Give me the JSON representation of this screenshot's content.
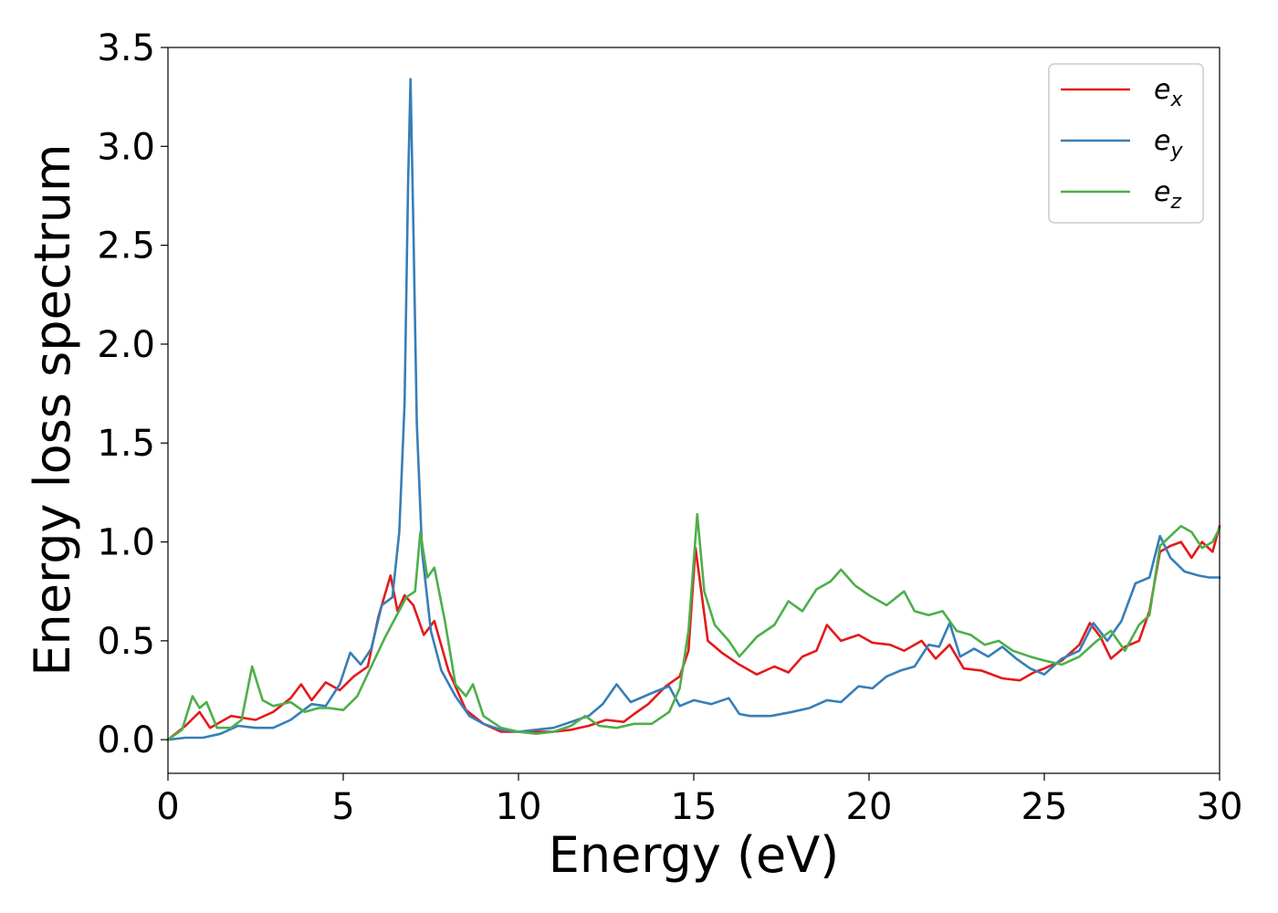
{
  "chart_data": {
    "type": "line",
    "xlabel": "Energy (eV)",
    "ylabel": "Energy loss spectrum",
    "xlim": [
      0,
      30
    ],
    "ylim": [
      -0.17,
      3.5
    ],
    "x_ticks": [
      0,
      5,
      10,
      15,
      20,
      25,
      30
    ],
    "x_tick_labels": [
      "0",
      "5",
      "10",
      "15",
      "20",
      "25",
      "30"
    ],
    "y_ticks": [
      0.0,
      0.5,
      1.0,
      1.5,
      2.0,
      2.5,
      3.0,
      3.5
    ],
    "y_tick_labels": [
      "0.0",
      "0.5",
      "1.0",
      "1.5",
      "2.0",
      "2.5",
      "3.0",
      "3.5"
    ],
    "grid": false,
    "legend_position": "top-right",
    "series": [
      {
        "name": "e_x",
        "label_base": "e",
        "label_sub": "x",
        "color": "#e41a1c",
        "x": [
          0,
          0.5,
          0.9,
          1.2,
          1.8,
          2.5,
          3.0,
          3.5,
          3.8,
          4.1,
          4.5,
          4.9,
          5.3,
          5.7,
          6.0,
          6.35,
          6.55,
          6.75,
          7.0,
          7.3,
          7.6,
          8.0,
          8.5,
          9.0,
          9.5,
          10.0,
          10.5,
          11.0,
          11.5,
          12.0,
          12.5,
          13.0,
          13.3,
          13.7,
          14.2,
          14.6,
          14.85,
          15.05,
          15.4,
          15.8,
          16.3,
          16.8,
          17.3,
          17.7,
          18.1,
          18.5,
          18.8,
          19.2,
          19.7,
          20.1,
          20.6,
          21.0,
          21.5,
          21.9,
          22.3,
          22.7,
          23.2,
          23.8,
          24.3,
          24.7,
          25.0,
          25.5,
          26.0,
          26.3,
          26.6,
          26.9,
          27.3,
          27.7,
          28.0,
          28.3,
          28.6,
          28.9,
          29.2,
          29.5,
          29.8,
          30.0
        ],
        "y": [
          0.0,
          0.07,
          0.14,
          0.06,
          0.12,
          0.1,
          0.14,
          0.21,
          0.28,
          0.2,
          0.29,
          0.25,
          0.32,
          0.37,
          0.62,
          0.83,
          0.65,
          0.73,
          0.68,
          0.53,
          0.6,
          0.35,
          0.15,
          0.08,
          0.04,
          0.04,
          0.04,
          0.04,
          0.05,
          0.07,
          0.1,
          0.09,
          0.13,
          0.18,
          0.27,
          0.32,
          0.45,
          0.97,
          0.5,
          0.44,
          0.38,
          0.33,
          0.37,
          0.34,
          0.42,
          0.45,
          0.58,
          0.5,
          0.53,
          0.49,
          0.48,
          0.45,
          0.5,
          0.41,
          0.48,
          0.36,
          0.35,
          0.31,
          0.3,
          0.34,
          0.36,
          0.4,
          0.48,
          0.59,
          0.52,
          0.41,
          0.47,
          0.5,
          0.65,
          0.95,
          0.98,
          1.0,
          0.92,
          1.0,
          0.95,
          1.08
        ]
      },
      {
        "name": "e_y",
        "label_base": "e",
        "label_sub": "y",
        "color": "#377eb8",
        "x": [
          0,
          0.5,
          1.0,
          1.5,
          2.0,
          2.5,
          3.0,
          3.5,
          3.8,
          4.1,
          4.5,
          4.9,
          5.2,
          5.5,
          5.8,
          6.1,
          6.4,
          6.6,
          6.75,
          6.85,
          6.92,
          7.0,
          7.1,
          7.25,
          7.5,
          7.8,
          8.2,
          8.6,
          9.0,
          9.5,
          10.0,
          10.5,
          11.0,
          11.5,
          12.0,
          12.4,
          12.8,
          13.2,
          13.6,
          14.0,
          14.3,
          14.6,
          15.0,
          15.5,
          16.0,
          16.3,
          16.6,
          17.2,
          17.8,
          18.3,
          18.8,
          19.2,
          19.7,
          20.1,
          20.5,
          20.9,
          21.3,
          21.7,
          22.0,
          22.3,
          22.6,
          23.0,
          23.4,
          23.8,
          24.2,
          24.6,
          25.0,
          25.5,
          26.0,
          26.4,
          26.8,
          27.2,
          27.6,
          28.0,
          28.3,
          28.6,
          29.0,
          29.4,
          29.7,
          30.0
        ],
        "y": [
          0.0,
          0.01,
          0.01,
          0.03,
          0.07,
          0.06,
          0.06,
          0.1,
          0.14,
          0.18,
          0.17,
          0.28,
          0.44,
          0.38,
          0.46,
          0.68,
          0.72,
          1.05,
          1.7,
          2.8,
          3.34,
          2.6,
          1.6,
          0.95,
          0.55,
          0.35,
          0.22,
          0.12,
          0.08,
          0.05,
          0.04,
          0.05,
          0.06,
          0.09,
          0.12,
          0.18,
          0.28,
          0.19,
          0.22,
          0.25,
          0.27,
          0.17,
          0.2,
          0.18,
          0.21,
          0.13,
          0.12,
          0.12,
          0.14,
          0.16,
          0.2,
          0.19,
          0.27,
          0.26,
          0.32,
          0.35,
          0.37,
          0.48,
          0.47,
          0.59,
          0.42,
          0.46,
          0.42,
          0.47,
          0.41,
          0.36,
          0.33,
          0.41,
          0.45,
          0.59,
          0.5,
          0.6,
          0.79,
          0.82,
          1.03,
          0.92,
          0.85,
          0.83,
          0.82,
          0.82
        ]
      },
      {
        "name": "e_z",
        "label_base": "e",
        "label_sub": "z",
        "color": "#4daf4a",
        "x": [
          0,
          0.4,
          0.7,
          0.9,
          1.1,
          1.4,
          1.8,
          2.1,
          2.4,
          2.7,
          3.0,
          3.5,
          3.9,
          4.3,
          4.6,
          5.0,
          5.4,
          5.8,
          6.2,
          6.5,
          6.8,
          7.05,
          7.2,
          7.4,
          7.6,
          7.9,
          8.2,
          8.5,
          8.7,
          9.0,
          9.5,
          10.0,
          10.5,
          11.0,
          11.5,
          11.9,
          12.3,
          12.8,
          13.3,
          13.8,
          14.3,
          14.6,
          14.85,
          15.1,
          15.3,
          15.6,
          16.0,
          16.3,
          16.8,
          17.3,
          17.7,
          18.1,
          18.5,
          18.9,
          19.2,
          19.6,
          20.0,
          20.5,
          21.0,
          21.3,
          21.7,
          22.1,
          22.5,
          22.9,
          23.3,
          23.7,
          24.1,
          24.6,
          25.0,
          25.5,
          26.0,
          26.5,
          26.9,
          27.3,
          27.7,
          28.0,
          28.3,
          28.6,
          28.9,
          29.2,
          29.5,
          29.8,
          30.0
        ],
        "y": [
          0.0,
          0.05,
          0.22,
          0.16,
          0.19,
          0.06,
          0.06,
          0.1,
          0.37,
          0.2,
          0.17,
          0.19,
          0.14,
          0.16,
          0.16,
          0.15,
          0.22,
          0.37,
          0.52,
          0.62,
          0.72,
          0.75,
          1.05,
          0.82,
          0.87,
          0.6,
          0.28,
          0.22,
          0.28,
          0.12,
          0.06,
          0.04,
          0.03,
          0.04,
          0.07,
          0.12,
          0.07,
          0.06,
          0.08,
          0.08,
          0.14,
          0.26,
          0.55,
          1.14,
          0.75,
          0.58,
          0.5,
          0.42,
          0.52,
          0.58,
          0.7,
          0.65,
          0.76,
          0.8,
          0.86,
          0.78,
          0.73,
          0.68,
          0.75,
          0.65,
          0.63,
          0.65,
          0.55,
          0.53,
          0.48,
          0.5,
          0.45,
          0.42,
          0.4,
          0.38,
          0.42,
          0.5,
          0.55,
          0.45,
          0.58,
          0.63,
          0.98,
          1.03,
          1.08,
          1.05,
          0.97,
          1.0,
          1.07
        ]
      }
    ]
  }
}
